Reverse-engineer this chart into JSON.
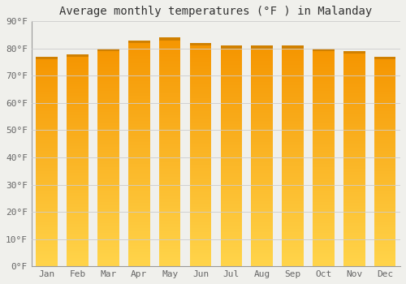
{
  "title": "Average monthly temperatures (°F ) in Malanday",
  "months": [
    "Jan",
    "Feb",
    "Mar",
    "Apr",
    "May",
    "Jun",
    "Jul",
    "Aug",
    "Sep",
    "Oct",
    "Nov",
    "Dec"
  ],
  "values": [
    77,
    78,
    80,
    83,
    84,
    82,
    81,
    81,
    81,
    80,
    79,
    77
  ],
  "ylim": [
    0,
    90
  ],
  "yticks": [
    0,
    10,
    20,
    30,
    40,
    50,
    60,
    70,
    80,
    90
  ],
  "ytick_labels": [
    "0°F",
    "10°F",
    "20°F",
    "30°F",
    "40°F",
    "50°F",
    "60°F",
    "70°F",
    "80°F",
    "90°F"
  ],
  "bar_color_bottom": "#FFD44A",
  "bar_color_mid": "#FFAA10",
  "bar_color_top": "#F59500",
  "bar_edge_color": "#D08000",
  "background_color": "#F0F0EC",
  "grid_color": "#CCCCCC",
  "title_fontsize": 10,
  "tick_fontsize": 8,
  "font_family": "monospace",
  "bar_width": 0.7,
  "n_gradient_steps": 200
}
